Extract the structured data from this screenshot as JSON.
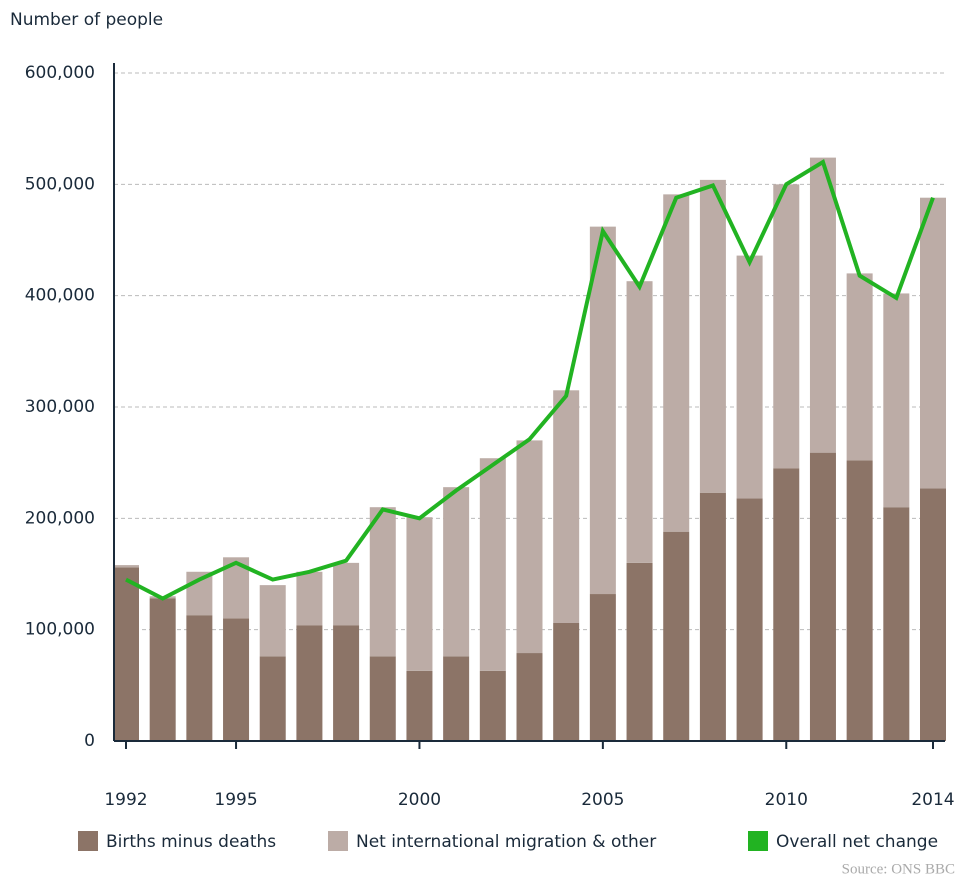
{
  "chart_data": {
    "type": "bar",
    "stacked": true,
    "y_axis_label": "Number of people",
    "source": "Source: ONS BBC",
    "categories": [
      "1992",
      null,
      null,
      "1995",
      null,
      null,
      null,
      null,
      "2000",
      null,
      null,
      null,
      null,
      "2005",
      null,
      null,
      null,
      null,
      "2010",
      null,
      null,
      null,
      "2014"
    ],
    "series": [
      {
        "name": "Births minus deaths",
        "color": "#8c7467",
        "type": "bar",
        "values": [
          156000,
          128000,
          113000,
          110000,
          76000,
          104000,
          104000,
          76000,
          63000,
          76000,
          63000,
          79000,
          106000,
          132000,
          160000,
          188000,
          223000,
          218000,
          245000,
          259000,
          252000,
          210000,
          227000
        ]
      },
      {
        "name": "Net international migration & other",
        "color": "#bcaca6",
        "type": "bar",
        "values": [
          2000,
          2000,
          39000,
          55000,
          64000,
          48000,
          56000,
          134000,
          138000,
          152000,
          191000,
          191000,
          209000,
          330000,
          253000,
          303000,
          281000,
          218000,
          255000,
          265000,
          168000,
          192000,
          261000
        ]
      },
      {
        "name": "Overall net change",
        "color": "#22b322",
        "type": "line",
        "values": [
          145000,
          128000,
          145000,
          160000,
          145000,
          152000,
          162000,
          208000,
          200000,
          225000,
          248000,
          271000,
          310000,
          458000,
          408000,
          488000,
          499000,
          430000,
          500000,
          520000,
          418000,
          398000,
          488000
        ]
      }
    ],
    "ylim": [
      0,
      600000
    ],
    "yticks": [
      0,
      {
        "value": 100000,
        "label": "100,000"
      },
      {
        "value": 200000,
        "label": "200,000"
      },
      {
        "value": 300000,
        "label": "300,000"
      },
      {
        "value": 400000,
        "label": "400,000"
      },
      {
        "value": 500000,
        "label": "500,000"
      },
      {
        "value": 600000,
        "label": "600,000"
      }
    ],
    "grid": true
  }
}
